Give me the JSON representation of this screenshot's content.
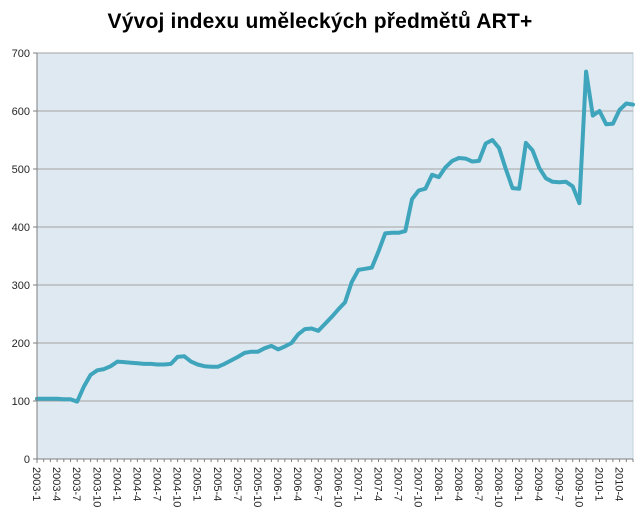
{
  "chart_data": {
    "type": "line",
    "title": "Vývoj indexu uměleckých předmětů ART+",
    "xlabel": "",
    "ylabel": "",
    "ylim": [
      0,
      700
    ],
    "y_ticks": [
      0,
      100,
      200,
      300,
      400,
      500,
      600,
      700
    ],
    "grid": "horizontal",
    "legend": "none",
    "x_tick_label_every": 3,
    "series_name": "ART+ index",
    "x": [
      "2003-1",
      "2003-2",
      "2003-3",
      "2003-4",
      "2003-5",
      "2003-6",
      "2003-7",
      "2003-8",
      "2003-9",
      "2003-10",
      "2003-11",
      "2003-12",
      "2004-1",
      "2004-2",
      "2004-3",
      "2004-4",
      "2004-5",
      "2004-6",
      "2004-7",
      "2004-8",
      "2004-9",
      "2004-10",
      "2004-11",
      "2004-12",
      "2005-1",
      "2005-2",
      "2005-3",
      "2005-4",
      "2005-5",
      "2005-6",
      "2005-7",
      "2005-8",
      "2005-9",
      "2005-10",
      "2005-11",
      "2005-12",
      "2006-1",
      "2006-2",
      "2006-3",
      "2006-4",
      "2006-5",
      "2006-6",
      "2006-7",
      "2006-8",
      "2006-9",
      "2006-10",
      "2006-11",
      "2006-12",
      "2007-1",
      "2007-2",
      "2007-3",
      "2007-4",
      "2007-5",
      "2007-6",
      "2007-7",
      "2007-8",
      "2007-9",
      "2007-10",
      "2007-11",
      "2007-12",
      "2008-1",
      "2008-2",
      "2008-3",
      "2008-4",
      "2008-5",
      "2008-6",
      "2008-7",
      "2008-8",
      "2008-9",
      "2008-10",
      "2008-11",
      "2008-12",
      "2009-1",
      "2009-2",
      "2009-3",
      "2009-4",
      "2009-5",
      "2009-6",
      "2009-7",
      "2009-8",
      "2009-9",
      "2009-10",
      "2009-11",
      "2009-12",
      "2010-1",
      "2010-2",
      "2010-3",
      "2010-4",
      "2010-5",
      "2010-6"
    ],
    "values": [
      104,
      104,
      104,
      104,
      103,
      103,
      99,
      125,
      145,
      153,
      155,
      160,
      168,
      167,
      166,
      165,
      164,
      164,
      163,
      163,
      164,
      176,
      177,
      168,
      163,
      160,
      159,
      159,
      164,
      170,
      176,
      183,
      185,
      185,
      191,
      195,
      189,
      194,
      200,
      215,
      224,
      225,
      221,
      233,
      245,
      258,
      270,
      305,
      326,
      328,
      330,
      358,
      389,
      390,
      390,
      393,
      448,
      463,
      466,
      490,
      486,
      503,
      514,
      519,
      518,
      513,
      514,
      544,
      550,
      536,
      500,
      467,
      466,
      545,
      532,
      502,
      484,
      478,
      477,
      478,
      470,
      441,
      668,
      592,
      600,
      577,
      578,
      602,
      613,
      611
    ],
    "colors": {
      "line": "#3fa5bc",
      "plot_background": "#dee9f1",
      "plot_border": "#c6d3dc",
      "gridline": "#a3a3a3",
      "axis_line": "#7f7f7f",
      "tick_text": "#262626",
      "title_text": "#000000",
      "page_background": "#ffffff"
    }
  }
}
